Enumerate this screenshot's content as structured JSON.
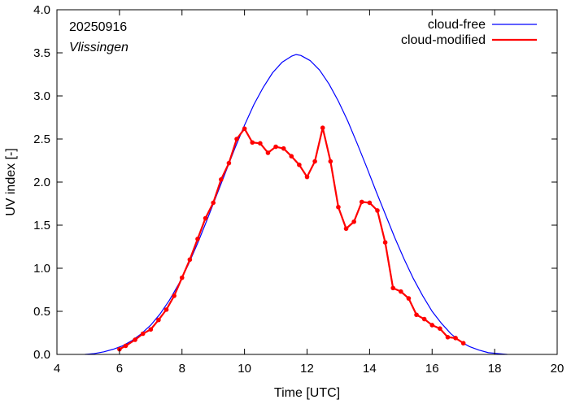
{
  "chart_data": {
    "type": "line",
    "title": "",
    "xlabel": "Time  [UTC]",
    "ylabel": "UV index  [-]",
    "xlim": [
      4,
      20
    ],
    "ylim": [
      0,
      4.0
    ],
    "xticks": [
      4,
      6,
      8,
      10,
      12,
      14,
      16,
      18,
      20
    ],
    "xtick_labels": [
      "4",
      "6",
      "8",
      "10",
      "12",
      "14",
      "16",
      "18",
      "20"
    ],
    "yticks": [
      0,
      0.5,
      1.0,
      1.5,
      2.0,
      2.5,
      3.0,
      3.5,
      4.0
    ],
    "ytick_labels": [
      "0.0",
      "0.5",
      "1.0",
      "1.5",
      "2.0",
      "2.5",
      "3.0",
      "3.5",
      "4.0"
    ],
    "grid": false,
    "legend_position": "top-right",
    "annotations": [
      "20250916",
      "Vlissingen"
    ],
    "series": [
      {
        "name": "cloud-free",
        "color": "#0000ff",
        "markers": false,
        "x": [
          4.9,
          5.2,
          5.5,
          5.8,
          6.1,
          6.4,
          6.7,
          7.0,
          7.3,
          7.6,
          7.9,
          8.2,
          8.5,
          8.8,
          9.1,
          9.4,
          9.7,
          10.0,
          10.3,
          10.6,
          10.9,
          11.2,
          11.5,
          11.65,
          11.8,
          12.1,
          12.4,
          12.7,
          13.0,
          13.3,
          13.6,
          13.9,
          14.2,
          14.5,
          14.8,
          15.1,
          15.4,
          15.7,
          16.0,
          16.3,
          16.6,
          16.9,
          17.2,
          17.5,
          17.8,
          18.1,
          18.4
        ],
        "y": [
          0.0,
          0.01,
          0.03,
          0.06,
          0.1,
          0.16,
          0.24,
          0.34,
          0.47,
          0.63,
          0.82,
          1.04,
          1.29,
          1.56,
          1.84,
          2.12,
          2.4,
          2.66,
          2.9,
          3.1,
          3.27,
          3.39,
          3.46,
          3.48,
          3.47,
          3.41,
          3.3,
          3.14,
          2.94,
          2.71,
          2.45,
          2.18,
          1.9,
          1.63,
          1.36,
          1.11,
          0.88,
          0.68,
          0.5,
          0.36,
          0.24,
          0.15,
          0.09,
          0.05,
          0.02,
          0.01,
          0.0
        ]
      },
      {
        "name": "cloud-modified",
        "color": "#ff0000",
        "markers": true,
        "x": [
          6.0,
          6.2,
          6.5,
          6.75,
          7.0,
          7.25,
          7.5,
          7.75,
          8.0,
          8.25,
          8.5,
          8.75,
          9.0,
          9.25,
          9.5,
          9.75,
          10.0,
          10.25,
          10.5,
          10.75,
          11.0,
          11.25,
          11.5,
          11.75,
          12.0,
          12.25,
          12.5,
          12.75,
          13.0,
          13.25,
          13.5,
          13.75,
          14.0,
          14.25,
          14.5,
          14.75,
          15.0,
          15.25,
          15.5,
          15.75,
          16.0,
          16.25,
          16.5,
          16.75,
          17.0
        ],
        "y": [
          0.06,
          0.1,
          0.17,
          0.24,
          0.29,
          0.4,
          0.52,
          0.68,
          0.89,
          1.1,
          1.34,
          1.58,
          1.76,
          2.03,
          2.22,
          2.5,
          2.62,
          2.46,
          2.45,
          2.34,
          2.41,
          2.39,
          2.3,
          2.2,
          2.06,
          2.24,
          2.63,
          2.24,
          1.71,
          1.46,
          1.54,
          1.77,
          1.76,
          1.67,
          1.3,
          0.77,
          0.73,
          0.65,
          0.46,
          0.41,
          0.34,
          0.3,
          0.2,
          0.19,
          0.13
        ]
      }
    ]
  }
}
